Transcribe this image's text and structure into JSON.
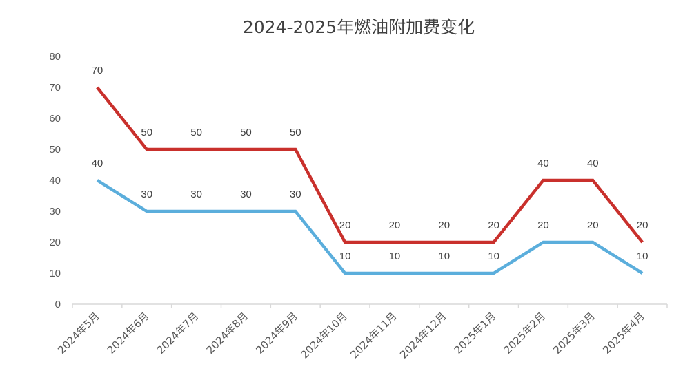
{
  "chart_data": {
    "type": "line",
    "title": "2024-2025年燃油附加费变化",
    "xlabel": "",
    "ylabel": "",
    "ylim": [
      0,
      80
    ],
    "yticks": [
      0,
      10,
      20,
      30,
      40,
      50,
      60,
      70,
      80
    ],
    "grid": false,
    "legend": "none",
    "categories": [
      "2024年5月",
      "2024年6月",
      "2024年7月",
      "2024年8月",
      "2024年9月",
      "2024年10月",
      "2024年11月",
      "2024年12月",
      "2025年1月",
      "2025年2月",
      "2025年3月",
      "2025年4月"
    ],
    "series": [
      {
        "values": [
          70,
          50,
          50,
          50,
          50,
          20,
          20,
          20,
          20,
          40,
          40,
          20
        ],
        "color": "#C9302C"
      },
      {
        "values": [
          40,
          30,
          30,
          30,
          30,
          10,
          10,
          10,
          10,
          20,
          20,
          10
        ],
        "color": "#5BAEDC"
      }
    ],
    "axis_color": "#D9D9D9"
  }
}
